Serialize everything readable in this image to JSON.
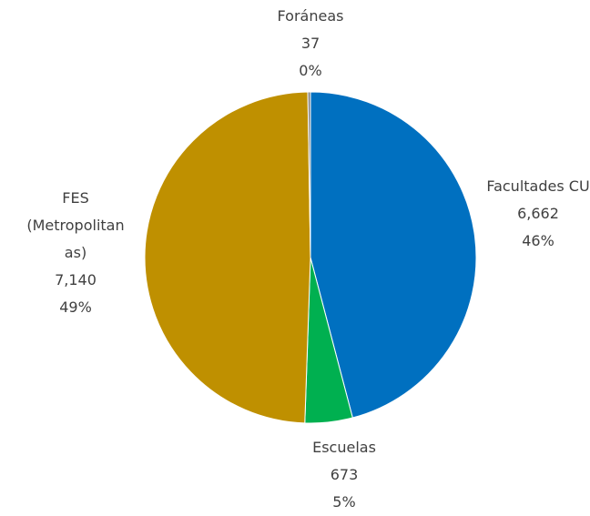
{
  "chart_data": {
    "type": "pie",
    "categories": [
      "Facultades CU",
      "Escuelas",
      "FES (Metropolitanas)",
      "Foráneas"
    ],
    "values": [
      6662,
      673,
      7140,
      37
    ],
    "value_labels": [
      "6,662",
      "673",
      "7,140",
      "37"
    ],
    "percent_labels": [
      "46%",
      "5%",
      "49%",
      "0%"
    ],
    "colors": [
      "#0070c0",
      "#00b050",
      "#bf9000",
      "#7f7f7f"
    ]
  }
}
